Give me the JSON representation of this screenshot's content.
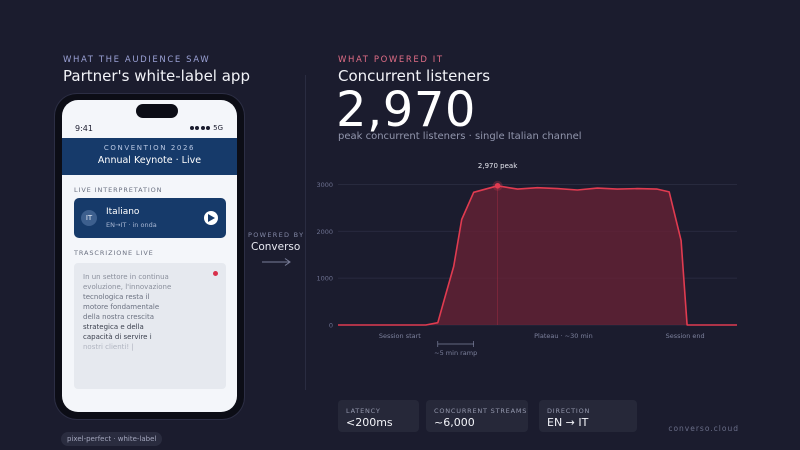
{
  "left": {
    "eyebrow": "WHAT THE AUDIENCE SAW",
    "title": "Partner's white-label app"
  },
  "right": {
    "eyebrow": "WHAT POWERED IT",
    "title": "Concurrent listeners",
    "big_number": "2,970",
    "caption": "peak concurrent listeners · single Italian channel"
  },
  "phone": {
    "time": "9:41",
    "network": "5G",
    "banner_eyebrow": "CONVENTION 2026",
    "banner_title": "Annual Keynote · Live",
    "interp_label": "LIVE INTERPRETATION",
    "lang_badge": "IT",
    "lang_name": "Italiano",
    "lang_sub": "EN→IT · in onda",
    "transcript_label": "TRASCRIZIONE LIVE",
    "transcript_lines": [
      "In un settore in continua",
      "evoluzione, l'innovazione",
      "tecnologica resta il",
      "motore fondamentale",
      "della nostra crescita",
      "strategica e della",
      "capacità di servire i",
      "nostri clienti! |"
    ],
    "colors": {
      "banner": "#163a6a",
      "live_dot": "#d8304b"
    }
  },
  "powered": {
    "label": "POWERED BY",
    "brand": "Converso"
  },
  "chart_data": {
    "type": "area",
    "title": "",
    "ylabel": "",
    "xlabel": "",
    "yticks": [
      0,
      1000,
      2000,
      3000
    ],
    "ylim": [
      0,
      3200
    ],
    "xlim": [
      0,
      100
    ],
    "x": [
      0,
      16,
      22,
      25,
      26.5,
      29,
      31,
      34,
      40,
      45,
      50,
      55,
      60,
      65,
      70,
      75,
      80,
      83,
      86,
      87.5,
      100
    ],
    "y": [
      0,
      0,
      0,
      50,
      500,
      1250,
      2250,
      2830,
      2970,
      2900,
      2930,
      2910,
      2880,
      2920,
      2900,
      2910,
      2900,
      2840,
      1800,
      0,
      0
    ],
    "annotations": {
      "peak_label": "2,970 peak",
      "peak_x": 40,
      "peak_y": 2970,
      "session_start": "Session start",
      "plateau": "Plateau · ~30 min",
      "session_end": "Session end",
      "ramp": "~5 min ramp"
    },
    "grid": true,
    "colors": {
      "line": "#e03b50",
      "fill": "#6b2236",
      "peak": "#e03b50"
    }
  },
  "stats": [
    {
      "label": "LATENCY",
      "value": "<200ms"
    },
    {
      "label": "CONCURRENT STREAMS",
      "value": "~6,000"
    },
    {
      "label": "DIRECTION",
      "value": "EN → IT"
    }
  ],
  "footer": {
    "tag": "pixel-perfect · white-label",
    "domain": "converso.cloud"
  },
  "icons": [
    "play-icon",
    "arrow-right-icon",
    "signal-icon"
  ]
}
